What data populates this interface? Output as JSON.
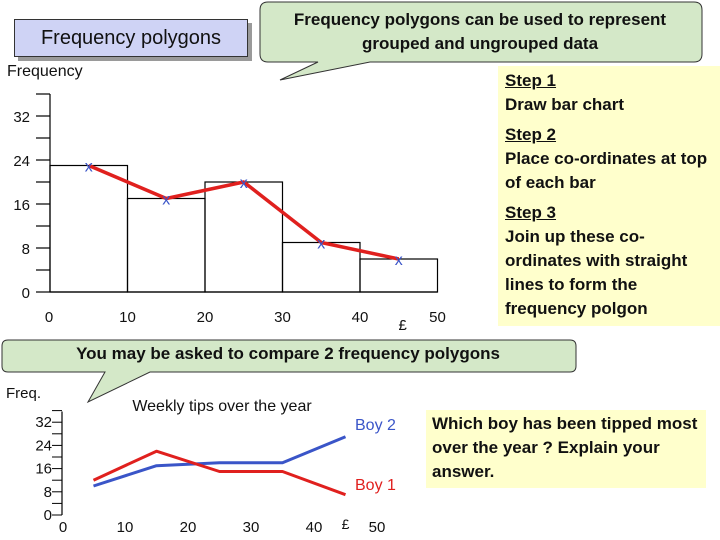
{
  "header": {
    "title": "Frequency polygons",
    "callout": "Frequency polygons can be used to represent grouped and ungrouped data"
  },
  "steps": [
    {
      "title": "Step 1",
      "text": "Draw bar chart"
    },
    {
      "title": "Step 2",
      "text": "Place co-ordinates at top of each bar"
    },
    {
      "title": "Step 3",
      "text": "Join up these co-ordinates with straight lines to form the frequency polgon"
    }
  ],
  "compare_text": "You may be asked to compare 2 frequency polygons",
  "question": "Which boy has been tipped most over the year ? Explain your answer.",
  "colors": {
    "bar_outline": "#000000",
    "polygon": "#e0201e",
    "marker": "#3a55c8",
    "boy1": "#e0201e",
    "boy2": "#3a55c8",
    "panel": "#ffffcc",
    "title_panel": "#cfd3f5",
    "callout": "#d4e8c8"
  },
  "chart_data": [
    {
      "type": "bar",
      "ylabel": "Frequency",
      "xlabel": "",
      "x_unit_label": "£",
      "x_ticks": [
        0,
        10,
        20,
        30,
        40,
        50
      ],
      "y_ticks": [
        0,
        8,
        16,
        24,
        32
      ],
      "ylim": [
        0,
        36
      ],
      "bins": [
        [
          0,
          10
        ],
        [
          10,
          20
        ],
        [
          20,
          30
        ],
        [
          30,
          40
        ],
        [
          40,
          50
        ]
      ],
      "values": [
        23,
        17,
        20,
        9,
        6
      ],
      "marker_label": "x",
      "polygon": {
        "x": [
          5,
          15,
          25,
          35,
          45
        ],
        "y": [
          23,
          17,
          20,
          9,
          6
        ]
      }
    },
    {
      "type": "line",
      "title": "Weekly tips over the year",
      "ylabel": "Freq.",
      "x_unit_label": "£",
      "x_ticks": [
        0,
        10,
        20,
        30,
        40,
        50
      ],
      "y_ticks": [
        0,
        8,
        16,
        24,
        32
      ],
      "ylim": [
        0,
        35
      ],
      "x": [
        5,
        15,
        25,
        35,
        45
      ],
      "series": [
        {
          "name": "Boy 2",
          "values": [
            10,
            17,
            18,
            18,
            27
          ]
        },
        {
          "name": "Boy 1",
          "values": [
            12,
            22,
            15,
            15,
            7
          ]
        }
      ]
    }
  ]
}
